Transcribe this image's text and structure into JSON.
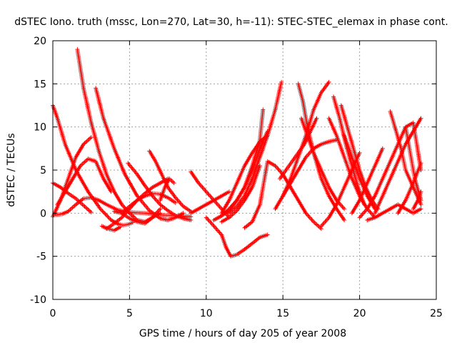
{
  "chart_data": {
    "type": "scatter",
    "title": "dSTEC Iono. truth (mssc, Lon=270, Lat=30, h=-11): STEC-STEC_elemax in phase cont.",
    "xlabel": "GPS time / hours of day 205 of year 2008",
    "ylabel": "dSTEC  / TECUs",
    "xlim": [
      0,
      25
    ],
    "ylim": [
      -10,
      20
    ],
    "x_ticks": [
      0,
      5,
      10,
      15,
      20,
      25
    ],
    "y_ticks": [
      -10,
      -5,
      0,
      5,
      10,
      15,
      20
    ],
    "grid": true,
    "marker": "+",
    "series_color": "#ff0000",
    "series": [
      {
        "x": [
          0.0,
          0.3,
          0.8,
          1.5,
          2.3,
          3.1,
          3.8,
          4.3,
          4.6,
          4.9,
          5.2
        ],
        "y": [
          12.5,
          11,
          8,
          5,
          2.5,
          0.5,
          -0.8,
          -1.3,
          -1.4,
          -1.3,
          -1.1
        ]
      },
      {
        "x": [
          0.2,
          0.6,
          1.0,
          1.5,
          2.0,
          2.5,
          3.0,
          3.5,
          4.2,
          5.0,
          6.0,
          7.0,
          8.0,
          9.0
        ],
        "y": [
          -0.2,
          -0.1,
          0.2,
          1.0,
          1.7,
          1.8,
          1.5,
          1.0,
          0.4,
          0.1,
          0.0,
          -0.2,
          -0.3,
          -0.4
        ]
      },
      {
        "x": [
          0.0,
          0.5,
          1.0,
          1.5,
          2.0,
          2.5
        ],
        "y": [
          -0.4,
          1.5,
          4.0,
          6.5,
          8.0,
          8.8
        ]
      },
      {
        "x": [
          0.0,
          0.5,
          1.0,
          1.5,
          2.0,
          2.5
        ],
        "y": [
          3.5,
          3.0,
          2.3,
          1.7,
          0.9,
          0.1
        ]
      },
      {
        "x": [
          0.3,
          0.8,
          1.3,
          1.8,
          2.3,
          2.8,
          3.3,
          3.8
        ],
        "y": [
          1.0,
          2.5,
          4.0,
          5.5,
          6.3,
          6.0,
          4.0,
          2.5
        ]
      },
      {
        "x": [
          1.6,
          2.0,
          2.5,
          3.0,
          3.5,
          4.0,
          4.5,
          5.0,
          5.5,
          6.0,
          6.5,
          7.0
        ],
        "y": [
          19.0,
          14.5,
          10.5,
          7.2,
          4.5,
          2.5,
          1.0,
          0.0,
          -0.8,
          -1.0,
          -0.5,
          0.0
        ]
      },
      {
        "x": [
          2.8,
          3.3,
          4.0,
          4.7,
          5.5,
          6.3,
          7.0,
          7.5,
          8.0,
          8.5
        ],
        "y": [
          14.5,
          11,
          7.5,
          4.5,
          2.0,
          0.3,
          -0.6,
          -0.8,
          -0.5,
          0.0
        ]
      },
      {
        "x": [
          3.5,
          4.0,
          4.5,
          5.0,
          5.5,
          6.0,
          6.5,
          7.0,
          7.5
        ],
        "y": [
          -1.8,
          -1.2,
          -0.5,
          0.5,
          1.5,
          2.3,
          3.0,
          3.5,
          4.0
        ]
      },
      {
        "x": [
          4.5,
          5.0,
          5.5,
          6.0,
          6.5,
          7.0,
          7.5,
          8.0
        ],
        "y": [
          0.0,
          0.8,
          1.5,
          2.0,
          2.3,
          2.2,
          1.8,
          1.2
        ]
      },
      {
        "x": [
          4.0,
          4.5,
          5.0,
          5.5,
          6.0,
          6.5,
          7.0
        ],
        "y": [
          0.2,
          0.0,
          -0.6,
          -1.0,
          -1.2,
          -0.5,
          0.5
        ]
      },
      {
        "x": [
          3.2,
          3.6,
          4.0,
          4.4
        ],
        "y": [
          -1.5,
          -1.8,
          -2.0,
          -1.6
        ]
      },
      {
        "x": [
          4.9,
          5.5,
          6.0,
          6.5,
          7.0,
          7.5,
          8.0,
          8.5,
          9.0
        ],
        "y": [
          5.8,
          4.5,
          3.2,
          2.0,
          1.0,
          0.3,
          -0.3,
          -0.6,
          -0.8
        ]
      },
      {
        "x": [
          6.3,
          6.7,
          7.1,
          7.5,
          8.0,
          8.5,
          9.0
        ],
        "y": [
          7.2,
          6.0,
          4.5,
          3.0,
          1.8,
          0.8,
          0.2
        ]
      },
      {
        "x": [
          7.0,
          7.3,
          7.6,
          7.9
        ],
        "y": [
          1.5,
          3.0,
          4.0,
          3.5
        ]
      },
      {
        "x": [
          9.0,
          9.5,
          10.0,
          10.5,
          11.0,
          11.5
        ],
        "y": [
          4.8,
          3.5,
          2.5,
          1.5,
          0.5,
          -0.5
        ]
      },
      {
        "x": [
          9.0,
          9.5,
          10.0,
          10.5,
          11.0,
          11.5
        ],
        "y": [
          0.0,
          0.5,
          1.0,
          1.5,
          2.0,
          2.5
        ]
      },
      {
        "x": [
          10.0,
          10.5,
          11.0,
          11.3,
          11.6,
          12.0,
          12.5,
          13.0,
          13.5,
          14.0
        ],
        "y": [
          -0.5,
          -1.5,
          -2.5,
          -4.0,
          -5.0,
          -4.8,
          -4.2,
          -3.5,
          -2.8,
          -2.5
        ]
      },
      {
        "x": [
          10.5,
          11.0,
          11.5,
          12.0,
          12.5,
          13.0,
          13.5,
          14.0
        ],
        "y": [
          -0.8,
          -0.3,
          0.3,
          1.5,
          3.0,
          5.0,
          7.5,
          9.5
        ]
      },
      {
        "x": [
          11.0,
          11.5,
          12.0,
          12.5,
          13.0,
          13.5,
          14.0
        ],
        "y": [
          0.0,
          1.5,
          3.5,
          5.5,
          7.0,
          8.3,
          9.0
        ]
      },
      {
        "x": [
          11.5,
          12.0,
          12.5,
          13.0,
          13.5,
          14.0,
          14.5,
          14.9
        ],
        "y": [
          0.0,
          0.8,
          2.0,
          4.0,
          6.5,
          9.0,
          12.0,
          15.2
        ]
      },
      {
        "x": [
          11.0,
          11.5,
          12.0,
          12.5,
          13.0,
          13.5
        ],
        "y": [
          -1.0,
          -0.5,
          0.3,
          1.5,
          3.0,
          5.5
        ]
      },
      {
        "x": [
          11.0,
          11.5,
          12.0,
          12.5,
          13.0,
          13.5,
          13.7
        ],
        "y": [
          -0.3,
          0.5,
          1.5,
          3.0,
          5.5,
          8.5,
          12.0
        ]
      },
      {
        "x": [
          12.5,
          13.0,
          13.5,
          14.0,
          14.5,
          15.0,
          15.5,
          16.0,
          16.5,
          17.0,
          17.5
        ],
        "y": [
          -1.7,
          -1.0,
          1.0,
          6.0,
          5.5,
          4.5,
          3.0,
          1.5,
          0.0,
          -1.0,
          -1.8
        ]
      },
      {
        "x": [
          14.5,
          15.0,
          15.5,
          16.0,
          16.5,
          17.0,
          17.5,
          18.0
        ],
        "y": [
          0.5,
          2.0,
          4.0,
          6.5,
          9.0,
          12.0,
          14.0,
          15.2
        ]
      },
      {
        "x": [
          15.0,
          15.5,
          16.0,
          16.5,
          17.0,
          17.5,
          18.0,
          18.5
        ],
        "y": [
          2.0,
          3.5,
          5.0,
          6.5,
          7.5,
          8.0,
          8.3,
          8.5
        ]
      },
      {
        "x": [
          14.8,
          15.2,
          15.6,
          16.0,
          16.4,
          16.8,
          17.2
        ],
        "y": [
          4.0,
          5.0,
          6.0,
          7.0,
          8.0,
          9.5,
          11.0
        ]
      },
      {
        "x": [
          16.0,
          16.3,
          16.6,
          17.0,
          17.5,
          18.0,
          18.5,
          19.0
        ],
        "y": [
          15.0,
          13.0,
          10.0,
          7.0,
          4.0,
          2.0,
          0.5,
          -0.8
        ]
      },
      {
        "x": [
          16.2,
          16.6,
          17.0,
          17.5,
          18.0,
          18.5,
          19.0
        ],
        "y": [
          11.0,
          9.0,
          7.0,
          5.0,
          3.0,
          1.5,
          0.5
        ]
      },
      {
        "x": [
          17.5,
          18.0,
          18.5,
          19.0,
          19.5,
          20.0
        ],
        "y": [
          -1.5,
          -0.5,
          1.0,
          3.0,
          5.0,
          7.0
        ]
      },
      {
        "x": [
          18.0,
          18.5,
          19.0,
          19.5,
          20.0,
          20.5,
          21.0
        ],
        "y": [
          11.0,
          9.0,
          6.5,
          4.0,
          2.0,
          0.5,
          -0.5
        ]
      },
      {
        "x": [
          18.3,
          18.7,
          19.1,
          19.5,
          19.9,
          20.3
        ],
        "y": [
          13.5,
          11.0,
          8.0,
          5.5,
          3.0,
          1.0
        ]
      },
      {
        "x": [
          18.8,
          19.2,
          19.6,
          20.0,
          20.4,
          20.8,
          21.2
        ],
        "y": [
          12.5,
          10.0,
          7.5,
          5.0,
          3.0,
          1.5,
          0.5
        ]
      },
      {
        "x": [
          19.0,
          19.5,
          20.0,
          20.5,
          21.0
        ],
        "y": [
          9.0,
          6.5,
          4.0,
          2.0,
          0.5
        ]
      },
      {
        "x": [
          19.5,
          20.0,
          20.5,
          21.0,
          21.5
        ],
        "y": [
          0.0,
          1.5,
          3.5,
          5.5,
          7.5
        ]
      },
      {
        "x": [
          20.0,
          20.5,
          21.0,
          21.5,
          22.0,
          22.5,
          23.0,
          23.5,
          24.0
        ],
        "y": [
          -0.5,
          0.5,
          2.0,
          4.0,
          6.0,
          8.0,
          10.0,
          10.5,
          5.0
        ]
      },
      {
        "x": [
          21.0,
          21.5,
          22.0,
          22.5,
          23.0,
          23.5,
          24.0
        ],
        "y": [
          0.0,
          2.0,
          4.0,
          6.0,
          8.0,
          9.5,
          11.0
        ]
      },
      {
        "x": [
          22.0,
          22.3,
          22.7,
          23.0,
          23.5,
          24.0
        ],
        "y": [
          11.8,
          10.0,
          7.5,
          5.0,
          3.0,
          1.0
        ]
      },
      {
        "x": [
          22.5,
          23.0,
          23.5,
          24.0
        ],
        "y": [
          0.0,
          1.5,
          3.5,
          5.8
        ]
      },
      {
        "x": [
          20.5,
          21.0,
          21.5,
          22.0,
          22.5,
          23.0,
          23.5,
          24.0
        ],
        "y": [
          -0.8,
          -0.5,
          0.0,
          0.5,
          1.0,
          0.5,
          0.0,
          0.5
        ]
      },
      {
        "x": [
          23.0,
          23.3,
          23.6,
          24.0
        ],
        "y": [
          10.0,
          7.0,
          4.0,
          1.5
        ]
      },
      {
        "x": [
          23.5,
          23.8,
          24.0
        ],
        "y": [
          0.5,
          1.5,
          2.5
        ]
      }
    ]
  }
}
